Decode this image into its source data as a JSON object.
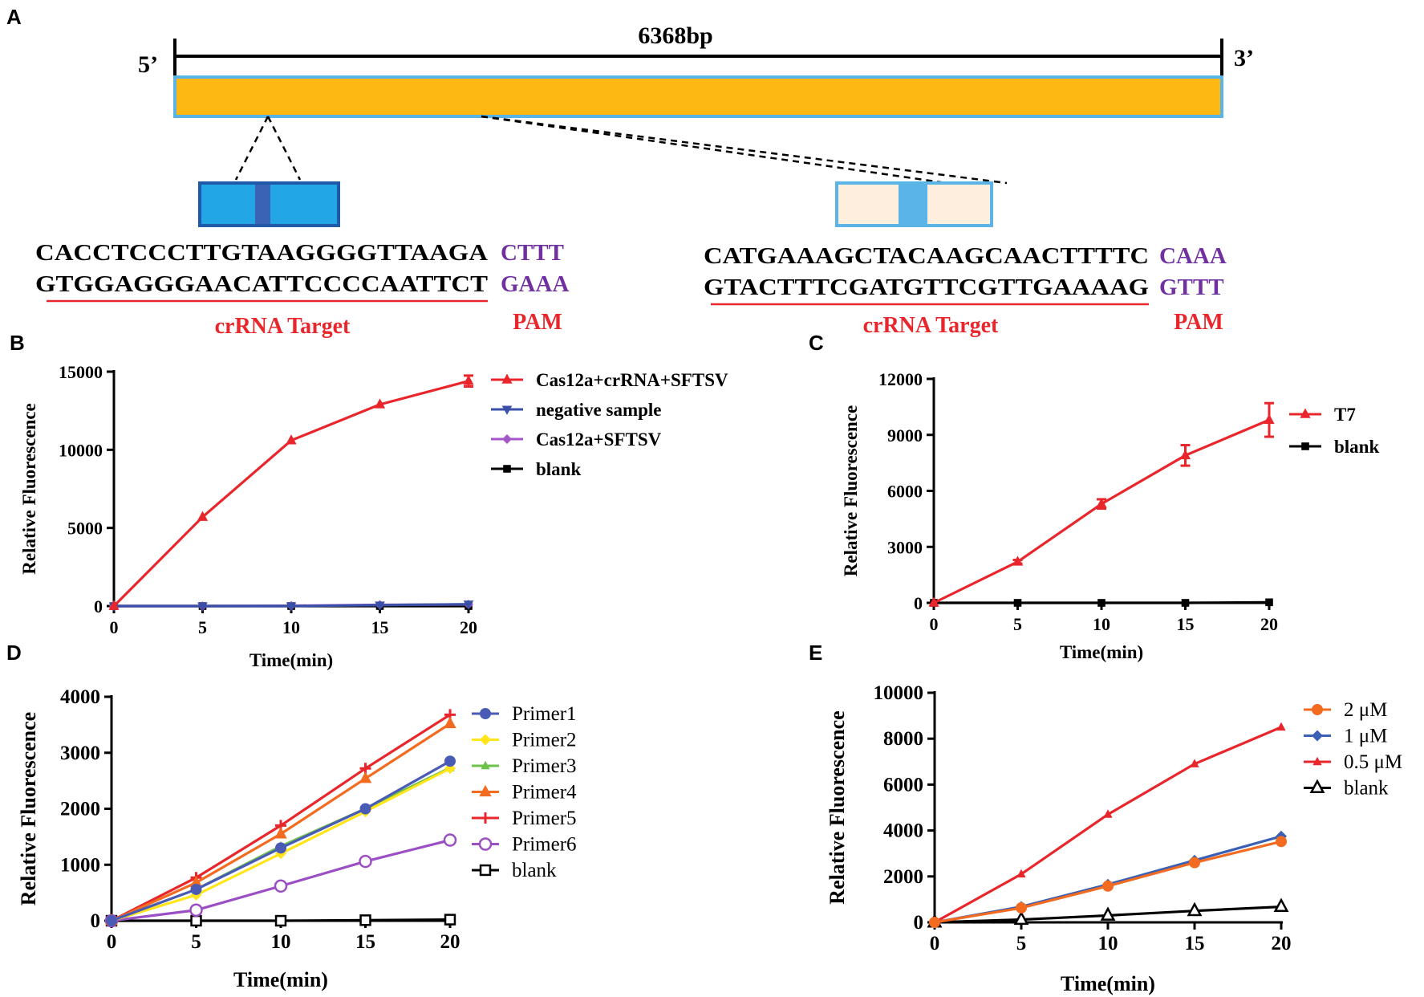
{
  "panel_a": {
    "letter": "A",
    "genome_length": "6368bp",
    "five_prime": "5’",
    "three_prime": "3’",
    "colors": {
      "genome_bar": "#fdb813",
      "bar_border": "#5ab4e5",
      "box1": "#23a6e6",
      "box1_band": "#3a63b5",
      "box2": "#fdeede",
      "box2_band": "#5ab4e5",
      "pam": "#7030a0",
      "label_red": "#e8262b"
    },
    "target1": {
      "top": "CACCTCCCTTGTAAGGGGTTAAGA",
      "bottom": "GTGGAGGGAACATTCCCCAATTCT",
      "pam_top": "CTTT",
      "pam_bottom": "GAAA",
      "label": "crRNA Target",
      "pam_label": "PAM"
    },
    "target2": {
      "top": "CATGAAAGCTACAAGCAACTTTTC",
      "bottom": "GTACTTTCGATGTTCGTTGAAAAG",
      "pam_top": "CAAA",
      "pam_bottom": "GTTT",
      "label": "crRNA Target",
      "pam_label": "PAM"
    }
  },
  "chart_data": [
    {
      "id": "B",
      "letter": "B",
      "type": "line",
      "xlabel": "Time(min)",
      "ylabel": "Relative Fluorescence",
      "x": [
        0,
        5,
        10,
        15,
        20
      ],
      "xlim": [
        0,
        20
      ],
      "ylim": [
        0,
        15000
      ],
      "yticks": [
        0,
        5000,
        10000,
        15000
      ],
      "xticks": [
        0,
        5,
        10,
        15,
        20
      ],
      "legend_position": "right",
      "series": [
        {
          "name": "Cas12a+crRNA+SFTSV",
          "values": [
            0,
            5700,
            10600,
            12900,
            14400
          ],
          "error": [
            0,
            0,
            0,
            0,
            350
          ],
          "color": "#e8262b",
          "marker": "triangle-up"
        },
        {
          "name": "negative sample",
          "values": [
            0,
            0,
            0,
            60,
            120
          ],
          "color": "#3a4fa8",
          "marker": "triangle-down"
        },
        {
          "name": "Cas12a+SFTSV",
          "values": [
            0,
            0,
            20,
            80,
            100
          ],
          "color": "#a357c9",
          "marker": "diamond"
        },
        {
          "name": "blank",
          "values": [
            0,
            0,
            0,
            0,
            0
          ],
          "color": "#000000",
          "marker": "square"
        }
      ]
    },
    {
      "id": "C",
      "letter": "C",
      "type": "line",
      "xlabel": "Time(min)",
      "ylabel": "Relative Fluorescence",
      "x": [
        0,
        5,
        10,
        15,
        20
      ],
      "xlim": [
        0,
        20
      ],
      "ylim": [
        0,
        12000
      ],
      "yticks": [
        0,
        3000,
        6000,
        9000,
        12000
      ],
      "xticks": [
        0,
        5,
        10,
        15,
        20
      ],
      "legend_position": "right",
      "series": [
        {
          "name": "T7",
          "values": [
            0,
            2200,
            5300,
            7900,
            9800
          ],
          "error": [
            0,
            100,
            250,
            550,
            900
          ],
          "color": "#e8262b",
          "marker": "triangle-up"
        },
        {
          "name": "blank",
          "values": [
            0,
            0,
            0,
            0,
            30
          ],
          "color": "#000000",
          "marker": "square"
        }
      ]
    },
    {
      "id": "D",
      "letter": "D",
      "type": "line",
      "xlabel": "Time(min)",
      "ylabel": "Relative Fluorescence",
      "x": [
        0,
        5,
        10,
        15,
        20
      ],
      "xlim": [
        0,
        20
      ],
      "ylim": [
        0,
        4000
      ],
      "yticks": [
        0,
        1000,
        2000,
        3000,
        4000
      ],
      "xticks": [
        0,
        5,
        10,
        15,
        20
      ],
      "legend_position": "right",
      "series": [
        {
          "name": "Primer1",
          "values": [
            0,
            560,
            1300,
            2000,
            2850
          ],
          "color": "#4a5bb5",
          "marker": "circle"
        },
        {
          "name": "Primer2",
          "values": [
            0,
            460,
            1200,
            1950,
            2720
          ],
          "color": "#ffe51a",
          "marker": "diamond"
        },
        {
          "name": "Primer3",
          "values": [
            0,
            560,
            1330,
            2000,
            2730
          ],
          "color": "#6cc24a",
          "marker": "triangle-up-small"
        },
        {
          "name": "Primer4",
          "values": [
            0,
            680,
            1550,
            2540,
            3520
          ],
          "color": "#f26b21",
          "marker": "triangle-up"
        },
        {
          "name": "Primer5",
          "values": [
            0,
            770,
            1700,
            2720,
            3680
          ],
          "color": "#e8262b",
          "marker": "plus"
        },
        {
          "name": "Primer6",
          "values": [
            0,
            190,
            620,
            1060,
            1440
          ],
          "color": "#9b4fc4",
          "marker": "circle-open"
        },
        {
          "name": "blank",
          "values": [
            0,
            0,
            0,
            10,
            20
          ],
          "color": "#000000",
          "marker": "square-open"
        }
      ]
    },
    {
      "id": "E",
      "letter": "E",
      "type": "line",
      "xlabel": "Time(min)",
      "ylabel": "Relative Fluorescence",
      "x": [
        0,
        5,
        10,
        15,
        20
      ],
      "xlim": [
        0,
        20
      ],
      "ylim": [
        0,
        10000
      ],
      "yticks": [
        0,
        2000,
        4000,
        6000,
        8000,
        10000
      ],
      "xticks": [
        0,
        5,
        10,
        15,
        20
      ],
      "legend_position": "right",
      "series": [
        {
          "name": "2 μM",
          "values": [
            0,
            630,
            1580,
            2600,
            3520
          ],
          "color": "#f26b21",
          "marker": "circle"
        },
        {
          "name": "1 μM",
          "values": [
            0,
            680,
            1650,
            2700,
            3750
          ],
          "color": "#3a5fb5",
          "marker": "diamond"
        },
        {
          "name": "0.5 μM",
          "values": [
            0,
            2100,
            4700,
            6900,
            8500
          ],
          "color": "#e8262b",
          "marker": "triangle-up-small"
        },
        {
          "name": "blank",
          "values": [
            0,
            120,
            300,
            500,
            680
          ],
          "color": "#000000",
          "marker": "triangle-open"
        }
      ]
    }
  ]
}
